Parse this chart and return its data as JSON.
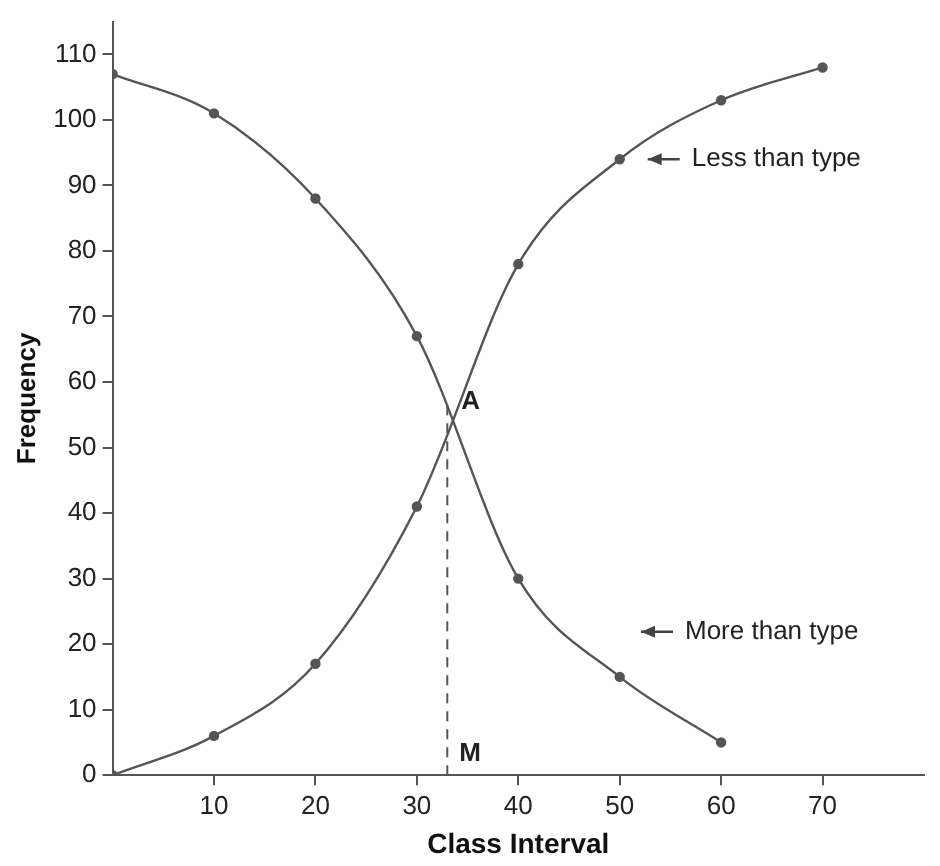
{
  "chart_data": {
    "type": "line",
    "xlabel": "Class Interval",
    "ylabel": "Frequency",
    "xlim": [
      0,
      80
    ],
    "xticks": [
      10,
      20,
      30,
      40,
      50,
      60,
      70
    ],
    "ylim": [
      0,
      115
    ],
    "yticks": [
      0,
      10,
      20,
      30,
      40,
      50,
      60,
      70,
      80,
      90,
      100,
      110
    ],
    "series": [
      {
        "color": "#555555",
        "x": [
          0,
          10,
          20,
          30,
          40,
          50,
          60,
          70
        ],
        "values": [
          0,
          6,
          17,
          41,
          78,
          94,
          103,
          108
        ]
      },
      {
        "color": "#555555",
        "x": [
          0,
          10,
          20,
          30,
          40,
          50,
          60
        ],
        "values": [
          107,
          101,
          88,
          67,
          30,
          15,
          5
        ]
      }
    ],
    "ref_lines": [
      {
        "axis": "x",
        "value": 33,
        "label": "M",
        "line_style": "dashed",
        "color": "#555555"
      }
    ],
    "annotations": [
      {
        "text": "A",
        "x": 33,
        "y": 57
      },
      "Less than type",
      "More than type"
    ],
    "marker": "circle",
    "grid": false,
    "legend": false
  }
}
